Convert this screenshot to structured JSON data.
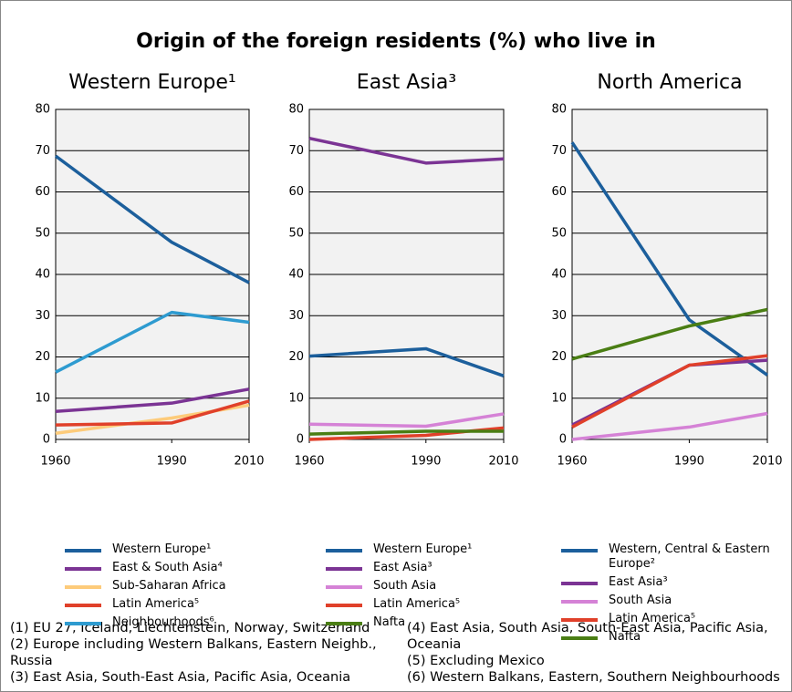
{
  "title": "Origin of the foreign residents (%) who live in",
  "chart_data": [
    {
      "type": "line",
      "title": "Western Europe¹",
      "x": [
        1960,
        1990,
        2010
      ],
      "xlim": [
        1960,
        2010
      ],
      "xticks": [
        1960,
        1990,
        2010
      ],
      "ylim": [
        0,
        80
      ],
      "yticks": [
        0,
        10,
        20,
        30,
        40,
        50,
        60,
        70,
        80
      ],
      "grid": true,
      "series": [
        {
          "name": "Western Europe¹",
          "color": "#1c5f9c",
          "values": [
            68.7,
            47.8,
            38
          ]
        },
        {
          "name": "East & South Asia⁴",
          "color": "#7b3494",
          "values": [
            6.8,
            8.8,
            12.2
          ]
        },
        {
          "name": "Sub-Saharan Africa",
          "color": "#fdcb7a",
          "values": [
            1.5,
            5.2,
            8.3
          ]
        },
        {
          "name": "Latin America⁵",
          "color": "#e0402a",
          "values": [
            3.5,
            4.0,
            9.3
          ]
        },
        {
          "name": "Neighbourhoods⁶",
          "color": "#2e9bd0",
          "values": [
            16.3,
            30.8,
            28.4
          ]
        }
      ]
    },
    {
      "type": "line",
      "title": "East Asia³",
      "x": [
        1960,
        1990,
        2010
      ],
      "xlim": [
        1960,
        2010
      ],
      "xticks": [
        1960,
        1990,
        2010
      ],
      "ylim": [
        0,
        80
      ],
      "yticks": [
        0,
        10,
        20,
        30,
        40,
        50,
        60,
        70,
        80
      ],
      "grid": true,
      "series": [
        {
          "name": "Western Europe¹",
          "color": "#1c5f9c",
          "values": [
            20.2,
            22,
            15.4
          ]
        },
        {
          "name": "East Asia³",
          "color": "#7b3494",
          "values": [
            73,
            67,
            68
          ]
        },
        {
          "name": "South Asia",
          "color": "#d582d6",
          "values": [
            3.7,
            3.2,
            6.2
          ]
        },
        {
          "name": "Latin America⁵",
          "color": "#e0402a",
          "values": [
            0,
            1,
            2.8
          ]
        },
        {
          "name": "Nafta",
          "color": "#4a7e14",
          "values": [
            1.3,
            2,
            2
          ]
        }
      ]
    },
    {
      "type": "line",
      "title": "North America",
      "x": [
        1960,
        1990,
        2010
      ],
      "xlim": [
        1960,
        2010
      ],
      "xticks": [
        1960,
        1990,
        2010
      ],
      "ylim": [
        0,
        80
      ],
      "yticks": [
        0,
        10,
        20,
        30,
        40,
        50,
        60,
        70,
        80
      ],
      "grid": true,
      "series": [
        {
          "name": "Western, Central & Eastern Europe²",
          "color": "#1c5f9c",
          "values": [
            72,
            29,
            15.6
          ]
        },
        {
          "name": "East Asia³",
          "color": "#7b3494",
          "values": [
            3.5,
            18,
            19.2
          ]
        },
        {
          "name": "South Asia",
          "color": "#d582d6",
          "values": [
            0,
            3,
            6.3
          ]
        },
        {
          "name": "Latin America⁵",
          "color": "#e0402a",
          "values": [
            3,
            18,
            20.3
          ]
        },
        {
          "name": "Nafta",
          "color": "#4a7e14",
          "values": [
            19.5,
            27.5,
            31.5
          ]
        }
      ]
    }
  ],
  "footnotes": [
    "(1) EU 27, Iceland, Liechtenstein, Norway, Switzerland",
    "(2) Europe including Western Balkans, Eastern Neighb., Russia",
    "(3) East Asia, South-East Asia, Pacific Asia, Oceania",
    "(4) East Asia, South Asia, South-East Asia, Pacific Asia, Oceania",
    "(5) Excluding Mexico",
    "(6) Western Balkans, Eastern, Southern Neighbourhoods"
  ]
}
